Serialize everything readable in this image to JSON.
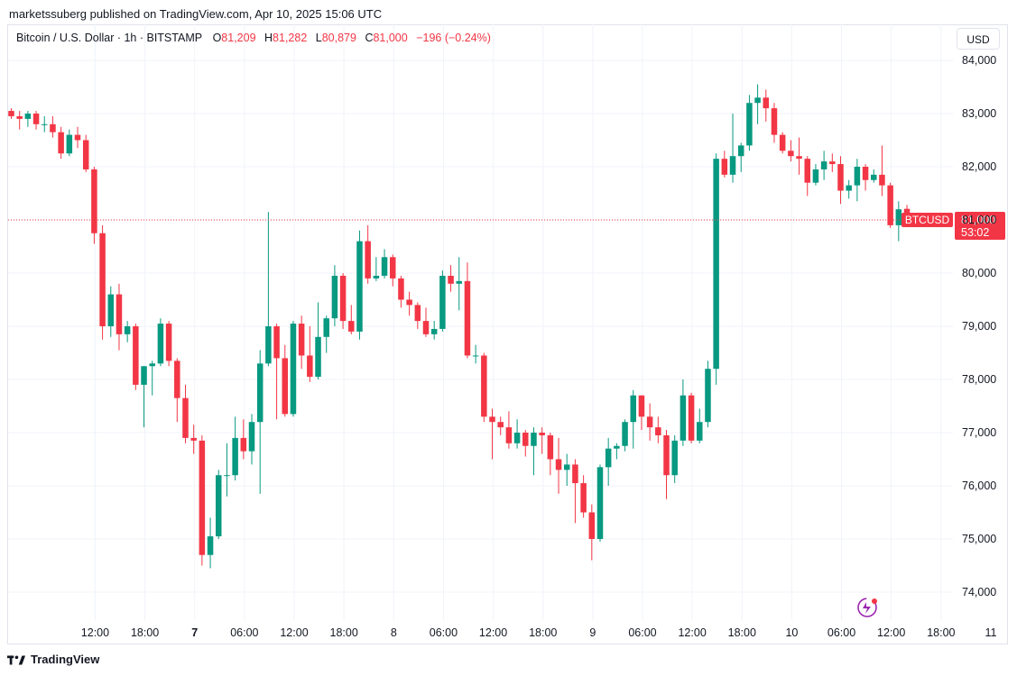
{
  "attribution": "marketssuberg published on TradingView.com, Apr 10, 2025 15:06 UTC",
  "legend": {
    "symbol": "Bitcoin / U.S. Dollar · 1h · BITSTAMP",
    "open_label": "O",
    "open": "81,209",
    "high_label": "H",
    "high": "81,282",
    "low_label": "L",
    "low": "80,879",
    "close_label": "C",
    "close": "81,000",
    "change": "−196 (−0.24%)"
  },
  "currency_button": "USD",
  "price_tag": {
    "name": "BTCUSD",
    "price": "81,000",
    "countdown": "53:02"
  },
  "footer_brand": "TradingView",
  "colors": {
    "up": "#089981",
    "down": "#f23645",
    "grid": "#f0f3fa"
  },
  "chart_data": {
    "type": "candlestick",
    "ylim": [
      73500,
      84500
    ],
    "y_ticks": [
      74000,
      75000,
      76000,
      77000,
      78000,
      79000,
      80000,
      81000,
      82000,
      83000,
      84000
    ],
    "y_tick_labels": [
      "74,000",
      "75,000",
      "76,000",
      "77,000",
      "78,000",
      "79,000",
      "80,000",
      "81,000",
      "82,000",
      "83,000",
      "84,000"
    ],
    "x_ticks": [
      {
        "i": 5,
        "label": "12:00",
        "bold": false
      },
      {
        "i": 11,
        "label": "18:00",
        "bold": false
      },
      {
        "i": 17,
        "label": "7",
        "bold": true
      },
      {
        "i": 23,
        "label": "06:00",
        "bold": false
      },
      {
        "i": 29,
        "label": "12:00",
        "bold": false
      },
      {
        "i": 35,
        "label": "18:00",
        "bold": false
      },
      {
        "i": 41,
        "label": "8",
        "bold": false
      },
      {
        "i": 47,
        "label": "06:00",
        "bold": false
      },
      {
        "i": 53,
        "label": "12:00",
        "bold": false
      },
      {
        "i": 59,
        "label": "18:00",
        "bold": false
      },
      {
        "i": 65,
        "label": "9",
        "bold": false
      },
      {
        "i": 71,
        "label": "06:00",
        "bold": false
      },
      {
        "i": 77,
        "label": "12:00",
        "bold": false
      },
      {
        "i": 83,
        "label": "18:00",
        "bold": false
      },
      {
        "i": 89,
        "label": "10",
        "bold": false
      },
      {
        "i": 95,
        "label": "06:00",
        "bold": false
      },
      {
        "i": 101,
        "label": "12:00",
        "bold": false
      },
      {
        "i": 107,
        "label": "18:00",
        "bold": false
      },
      {
        "i": 113,
        "label": "11",
        "bold": false
      }
    ],
    "last_price": 81000,
    "ohlc": [
      [
        83050,
        83100,
        82900,
        82950
      ],
      [
        82950,
        83050,
        82700,
        82900
      ],
      [
        82900,
        83050,
        82750,
        83000
      ],
      [
        83000,
        83050,
        82700,
        82800
      ],
      [
        82800,
        82950,
        82650,
        82800
      ],
      [
        82800,
        82950,
        82550,
        82650
      ],
      [
        82650,
        82750,
        82150,
        82250
      ],
      [
        82250,
        82700,
        82200,
        82600
      ],
      [
        82600,
        82750,
        82350,
        82500
      ],
      [
        82500,
        82600,
        81900,
        81950
      ],
      [
        81950,
        82000,
        80550,
        80750
      ],
      [
        80750,
        80900,
        78750,
        79000
      ],
      [
        79000,
        79750,
        78800,
        79600
      ],
      [
        79600,
        79800,
        78550,
        78850
      ],
      [
        78850,
        79100,
        78700,
        79000
      ],
      [
        79000,
        79050,
        77800,
        77900
      ],
      [
        77900,
        78250,
        77100,
        78250
      ],
      [
        78250,
        78350,
        77700,
        78300
      ],
      [
        78300,
        79150,
        78250,
        79050
      ],
      [
        79050,
        79100,
        78250,
        78350
      ],
      [
        78350,
        78400,
        77200,
        77650
      ],
      [
        77650,
        77900,
        76800,
        76900
      ],
      [
        76900,
        77150,
        76600,
        76850
      ],
      [
        76850,
        76950,
        74500,
        74700
      ],
      [
        74700,
        75400,
        74450,
        75050
      ],
      [
        75050,
        76300,
        75000,
        76200
      ],
      [
        76200,
        76800,
        75800,
        76200
      ],
      [
        76200,
        77300,
        76100,
        76900
      ],
      [
        76900,
        77250,
        76500,
        76650
      ],
      [
        76650,
        77350,
        76400,
        77200
      ],
      [
        77200,
        78550,
        75850,
        78300
      ],
      [
        78300,
        81150,
        78250,
        79000
      ],
      [
        79000,
        79050,
        77250,
        78400
      ],
      [
        78400,
        78650,
        77300,
        77350
      ],
      [
        77350,
        79100,
        77300,
        79050
      ],
      [
        79050,
        79200,
        78200,
        78450
      ],
      [
        78450,
        79000,
        77950,
        78050
      ],
      [
        78050,
        79450,
        78000,
        78800
      ],
      [
        78800,
        79200,
        78500,
        79150
      ],
      [
        79150,
        80150,
        79000,
        79950
      ],
      [
        79950,
        80000,
        78950,
        79100
      ],
      [
        79100,
        79400,
        78850,
        78900
      ],
      [
        78900,
        80800,
        78750,
        80600
      ],
      [
        80600,
        80900,
        79800,
        79900
      ],
      [
        79900,
        80300,
        79850,
        79950
      ],
      [
        79950,
        80450,
        79900,
        80300
      ],
      [
        80300,
        80350,
        79750,
        79900
      ],
      [
        79900,
        79950,
        79350,
        79500
      ],
      [
        79500,
        79650,
        79200,
        79400
      ],
      [
        79400,
        79450,
        78950,
        79100
      ],
      [
        79100,
        79350,
        78800,
        78850
      ],
      [
        78850,
        79100,
        78750,
        78950
      ],
      [
        78950,
        80050,
        78900,
        79950
      ],
      [
        79950,
        80150,
        79650,
        79800
      ],
      [
        79800,
        80300,
        79300,
        79850
      ],
      [
        79850,
        80200,
        78400,
        78450
      ],
      [
        78450,
        78650,
        78300,
        78450
      ],
      [
        78450,
        78500,
        77200,
        77300
      ],
      [
        77300,
        77450,
        76500,
        77200
      ],
      [
        77200,
        77300,
        76950,
        77100
      ],
      [
        77100,
        77400,
        76700,
        76800
      ],
      [
        76800,
        77250,
        76700,
        77000
      ],
      [
        77000,
        77050,
        76550,
        76750
      ],
      [
        76750,
        77100,
        76200,
        77000
      ],
      [
        77000,
        77100,
        76600,
        76950
      ],
      [
        76950,
        77000,
        76200,
        76500
      ],
      [
        76500,
        76900,
        75850,
        76300
      ],
      [
        76300,
        76600,
        76000,
        76400
      ],
      [
        76400,
        76500,
        75300,
        76050
      ],
      [
        76050,
        76200,
        75400,
        75500
      ],
      [
        75500,
        75650,
        74600,
        75000
      ],
      [
        75000,
        76400,
        74950,
        76350
      ],
      [
        76350,
        76900,
        76000,
        76700
      ],
      [
        76700,
        76800,
        76500,
        76750
      ],
      [
        76750,
        77250,
        76650,
        77200
      ],
      [
        77200,
        77800,
        76700,
        77700
      ],
      [
        77700,
        77700,
        77050,
        77300
      ],
      [
        77300,
        77550,
        76850,
        77100
      ],
      [
        77100,
        77300,
        76800,
        76950
      ],
      [
        76950,
        77050,
        75750,
        76200
      ],
      [
        76200,
        76950,
        76050,
        76850
      ],
      [
        76850,
        78000,
        76750,
        77700
      ],
      [
        77700,
        77750,
        76800,
        76850
      ],
      [
        76850,
        77450,
        76800,
        77200
      ],
      [
        77200,
        78350,
        77100,
        78200
      ],
      [
        78200,
        82250,
        77900,
        82150
      ],
      [
        82150,
        82300,
        81800,
        81850
      ],
      [
        81850,
        83000,
        81700,
        82200
      ],
      [
        82200,
        82450,
        81900,
        82400
      ],
      [
        82400,
        83350,
        82300,
        83200
      ],
      [
        83200,
        83550,
        82800,
        83300
      ],
      [
        83300,
        83450,
        82850,
        83100
      ],
      [
        83100,
        83200,
        82450,
        82600
      ],
      [
        82600,
        82650,
        82250,
        82300
      ],
      [
        82300,
        82500,
        82100,
        82200
      ],
      [
        82200,
        82550,
        81850,
        82150
      ],
      [
        82150,
        82200,
        81450,
        81700
      ],
      [
        81700,
        82050,
        81650,
        81950
      ],
      [
        81950,
        82300,
        81750,
        82100
      ],
      [
        82100,
        82250,
        81900,
        82050
      ],
      [
        82050,
        82200,
        81300,
        81550
      ],
      [
        81550,
        81750,
        81400,
        81650
      ],
      [
        81650,
        82150,
        81350,
        82000
      ],
      [
        82000,
        82050,
        81550,
        81750
      ],
      [
        81750,
        81950,
        81700,
        81850
      ],
      [
        81850,
        82400,
        81450,
        81650
      ],
      [
        81650,
        81700,
        80850,
        80900
      ],
      [
        80900,
        81350,
        80600,
        81200
      ],
      [
        81209,
        81282,
        80879,
        81000
      ]
    ]
  }
}
